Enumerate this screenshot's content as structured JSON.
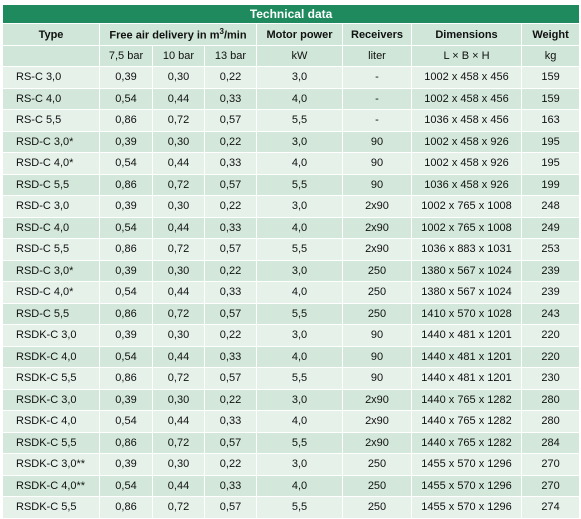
{
  "title": "Technical data",
  "headers": {
    "type": "Type",
    "air_prefix": "Free air delivery in m",
    "air_sup": "3",
    "air_suffix": "/min",
    "motor": "Motor power",
    "receivers": "Receivers",
    "dimensions": "Dimensions",
    "weight": "Weight"
  },
  "subheaders": {
    "p1": "7,5 bar",
    "p2": "10 bar",
    "p3": "13 bar",
    "motor_unit": "kW",
    "receiver_unit": "liter",
    "dim_unit": "L × B × H",
    "weight_unit": "kg"
  },
  "rows": [
    {
      "type": "RS-C 3,0",
      "fad_75": "0,39",
      "fad_10": "0,30",
      "fad_13": "0,22",
      "motor": "3,0",
      "receiver": "-",
      "dims": "1002 x 458 x 456",
      "weight": "159"
    },
    {
      "type": "RS-C 4,0",
      "fad_75": "0,54",
      "fad_10": "0,44",
      "fad_13": "0,33",
      "motor": "4,0",
      "receiver": "-",
      "dims": "1002 x 458 x 456",
      "weight": "159"
    },
    {
      "type": "RS-C 5,5",
      "fad_75": "0,86",
      "fad_10": "0,72",
      "fad_13": "0,57",
      "motor": "5,5",
      "receiver": "-",
      "dims": "1036 x 458 x 456",
      "weight": "163"
    },
    {
      "type": "RSD-C 3,0*",
      "fad_75": "0,39",
      "fad_10": "0,30",
      "fad_13": "0,22",
      "motor": "3,0",
      "receiver": "90",
      "dims": "1002 x 458 x 926",
      "weight": "195"
    },
    {
      "type": "RSD-C 4,0*",
      "fad_75": "0,54",
      "fad_10": "0,44",
      "fad_13": "0,33",
      "motor": "4,0",
      "receiver": "90",
      "dims": "1002 x 458 x 926",
      "weight": "195"
    },
    {
      "type": "RSD-C 5,5",
      "fad_75": "0,86",
      "fad_10": "0,72",
      "fad_13": "0,57",
      "motor": "5,5",
      "receiver": "90",
      "dims": "1036 x 458 x 926",
      "weight": "199"
    },
    {
      "type": "RSD-C 3,0",
      "fad_75": "0,39",
      "fad_10": "0,30",
      "fad_13": "0,22",
      "motor": "3,0",
      "receiver": "2x90",
      "dims": "1002 x 765 x 1008",
      "weight": "248"
    },
    {
      "type": "RSD-C 4,0",
      "fad_75": "0,54",
      "fad_10": "0,44",
      "fad_13": "0,33",
      "motor": "4,0",
      "receiver": "2x90",
      "dims": "1002 x 765 x 1008",
      "weight": "249"
    },
    {
      "type": "RSD-C 5,5",
      "fad_75": "0,86",
      "fad_10": "0,72",
      "fad_13": "0,57",
      "motor": "5,5",
      "receiver": "2x90",
      "dims": "1036 x 883 x 1031",
      "weight": "253"
    },
    {
      "type": "RSD-C 3,0*",
      "fad_75": "0,39",
      "fad_10": "0,30",
      "fad_13": "0,22",
      "motor": "3,0",
      "receiver": "250",
      "dims": "1380 x 567 x 1024",
      "weight": "239"
    },
    {
      "type": "RSD-C 4,0*",
      "fad_75": "0,54",
      "fad_10": "0,44",
      "fad_13": "0,33",
      "motor": "4,0",
      "receiver": "250",
      "dims": "1380 x 567 x 1024",
      "weight": "239"
    },
    {
      "type": "RSD-C 5,5",
      "fad_75": "0,86",
      "fad_10": "0,72",
      "fad_13": "0,57",
      "motor": "5,5",
      "receiver": "250",
      "dims": "1410 x 570 x 1028",
      "weight": "243"
    },
    {
      "type": "RSDK-C 3,0",
      "fad_75": "0,39",
      "fad_10": "0,30",
      "fad_13": "0,22",
      "motor": "3,0",
      "receiver": "90",
      "dims": "1440 x 481 x 1201",
      "weight": "220"
    },
    {
      "type": "RSDK-C 4,0",
      "fad_75": "0,54",
      "fad_10": "0,44",
      "fad_13": "0,33",
      "motor": "4,0",
      "receiver": "90",
      "dims": "1440 x 481 x 1201",
      "weight": "220"
    },
    {
      "type": "RSDK-C 5,5",
      "fad_75": "0,86",
      "fad_10": "0,72",
      "fad_13": "0,57",
      "motor": "5,5",
      "receiver": "90",
      "dims": "1440 x 481 x 1201",
      "weight": "230"
    },
    {
      "type": "RSDK-C 3,0",
      "fad_75": "0,39",
      "fad_10": "0,30",
      "fad_13": "0,22",
      "motor": "3,0",
      "receiver": "2x90",
      "dims": "1440 x 765 x 1282",
      "weight": "280"
    },
    {
      "type": "RSDK-C 4,0",
      "fad_75": "0,54",
      "fad_10": "0,44",
      "fad_13": "0,33",
      "motor": "4,0",
      "receiver": "2x90",
      "dims": "1440 x 765 x 1282",
      "weight": "280"
    },
    {
      "type": "RSDK-C 5,5",
      "fad_75": "0,86",
      "fad_10": "0,72",
      "fad_13": "0,57",
      "motor": "5,5",
      "receiver": "2x90",
      "dims": "1440 x 765 x 1282",
      "weight": "284"
    },
    {
      "type": "RSDK-C 3,0**",
      "fad_75": "0,39",
      "fad_10": "0,30",
      "fad_13": "0,22",
      "motor": "3,0",
      "receiver": "250",
      "dims": "1455 x 570 x 1296",
      "weight": "270"
    },
    {
      "type": "RSDK-C 4,0**",
      "fad_75": "0,54",
      "fad_10": "0,44",
      "fad_13": "0,33",
      "motor": "4,0",
      "receiver": "250",
      "dims": "1455 x 570 x 1296",
      "weight": "270"
    },
    {
      "type": "RSDK-C 5,5",
      "fad_75": "0,86",
      "fad_10": "0,72",
      "fad_13": "0,57",
      "motor": "5,5",
      "receiver": "250",
      "dims": "1455 x 570 x 1296",
      "weight": "274"
    }
  ],
  "colors": {
    "title_bg": "#1e8a5e",
    "header_bg": "#cfe6d8",
    "row_odd": "#e6f1ea",
    "row_even": "#d3e8db"
  }
}
